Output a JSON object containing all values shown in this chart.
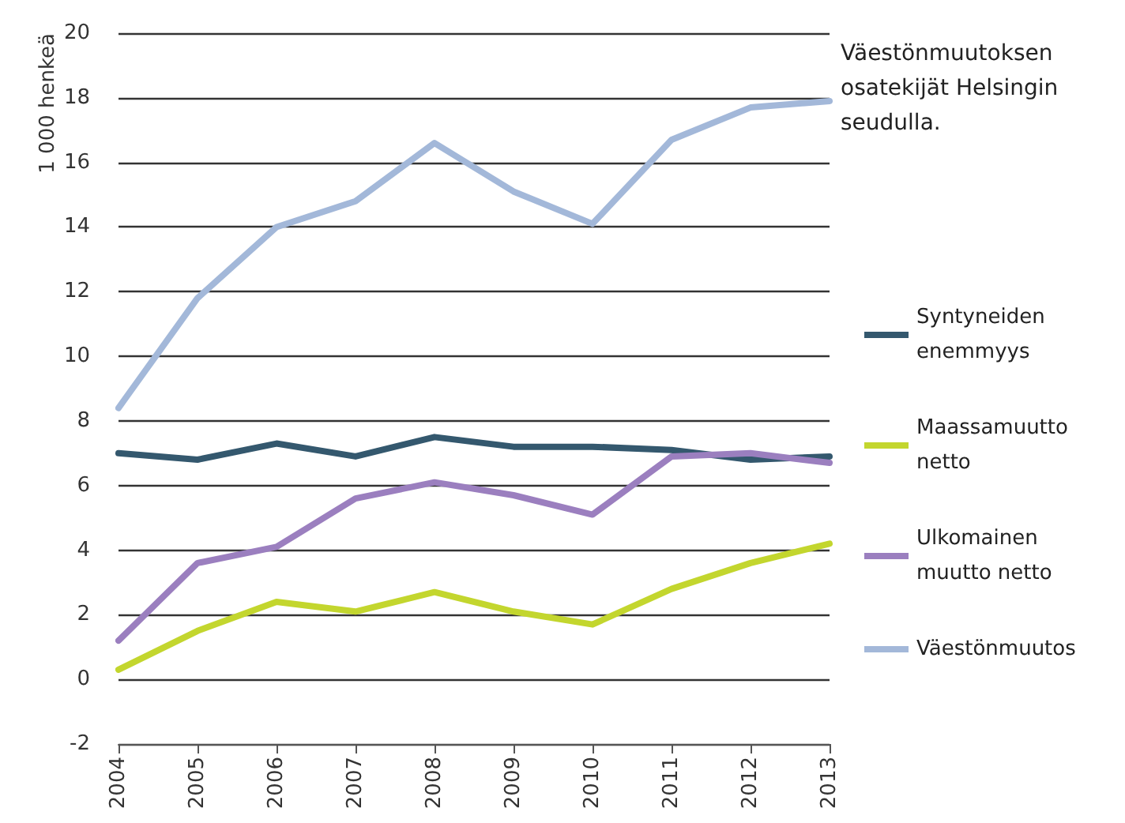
{
  "chart_data": {
    "type": "line",
    "title": "Väestönmuutoksen osatekijät Helsingin seudulla.",
    "ylabel": "1 000 henkeä",
    "categories": [
      "2004",
      "2005",
      "2006",
      "2007",
      "2008",
      "2009",
      "2010",
      "2011",
      "2012",
      "2013"
    ],
    "series": [
      {
        "name": "Syntyneiden enemmyys",
        "color": "#34586e",
        "values": [
          7.0,
          6.8,
          7.3,
          6.9,
          7.5,
          7.2,
          7.2,
          7.1,
          6.8,
          6.9
        ]
      },
      {
        "name": "Maassamuutto netto",
        "color": "#c3d62e",
        "values": [
          0.3,
          1.5,
          2.4,
          2.1,
          2.7,
          2.1,
          1.7,
          2.8,
          3.6,
          4.2
        ]
      },
      {
        "name": "Ulkomainen muutto netto",
        "color": "#9b7fbf",
        "values": [
          1.2,
          3.6,
          4.1,
          5.6,
          6.1,
          5.7,
          5.1,
          6.9,
          7.0,
          6.7
        ]
      },
      {
        "name": "Väestönmuutos",
        "color": "#a3b8d9",
        "values": [
          8.4,
          11.8,
          14.0,
          14.8,
          16.6,
          15.1,
          14.1,
          16.7,
          17.7,
          17.9
        ]
      }
    ],
    "ylim": [
      -2,
      20
    ],
    "yticks": [
      -2,
      0,
      2,
      4,
      6,
      8,
      10,
      12,
      14,
      16,
      18,
      20
    ],
    "grid": "y",
    "legend": "right",
    "marker": "none",
    "line_style": "solid"
  }
}
